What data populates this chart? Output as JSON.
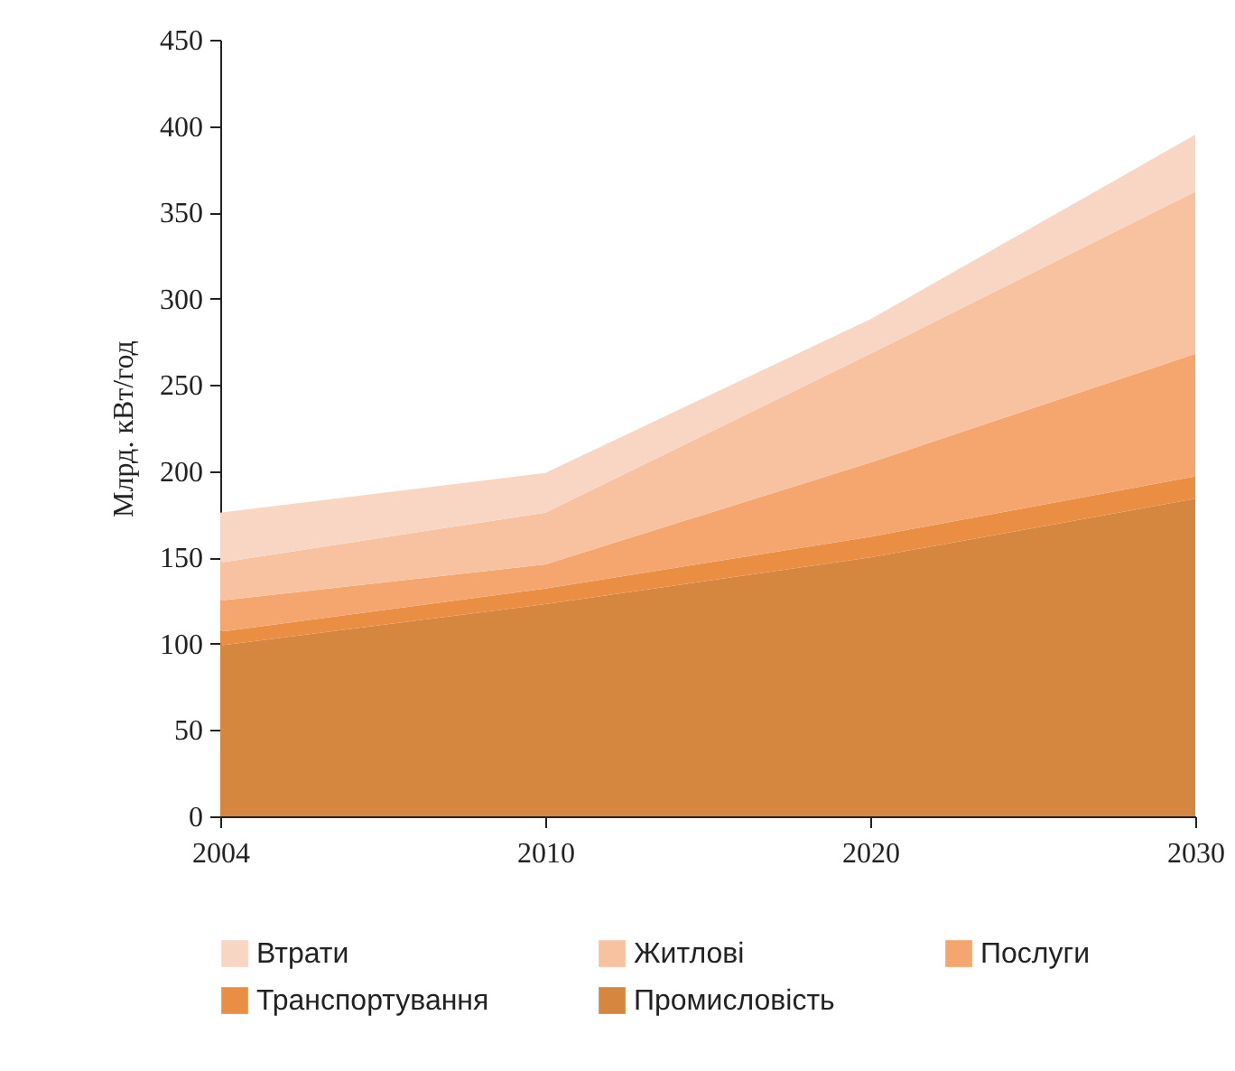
{
  "chart_data": {
    "type": "area",
    "stacked": true,
    "ylabel": "Млрд. кВт/год",
    "categories": [
      "2004",
      "2010",
      "2020",
      "2030"
    ],
    "series": [
      {
        "name": "Промисловість",
        "color": "#d5863f",
        "values": [
          99,
          123,
          150,
          184
        ]
      },
      {
        "name": "Транспортування",
        "color": "#ea8e44",
        "values": [
          8,
          9,
          12,
          13
        ]
      },
      {
        "name": "Послуги",
        "color": "#f5a66f",
        "values": [
          18,
          14,
          43,
          71
        ]
      },
      {
        "name": "Житлові",
        "color": "#f8c2a0",
        "values": [
          22,
          30,
          63,
          94
        ]
      },
      {
        "name": "Втрати",
        "color": "#f9d6c4",
        "values": [
          29,
          23,
          20,
          33
        ]
      }
    ],
    "ylim": [
      0,
      450
    ],
    "yticks": [
      0,
      50,
      100,
      150,
      200,
      250,
      300,
      350,
      400,
      450
    ],
    "grid": false,
    "legend": "bottom"
  }
}
